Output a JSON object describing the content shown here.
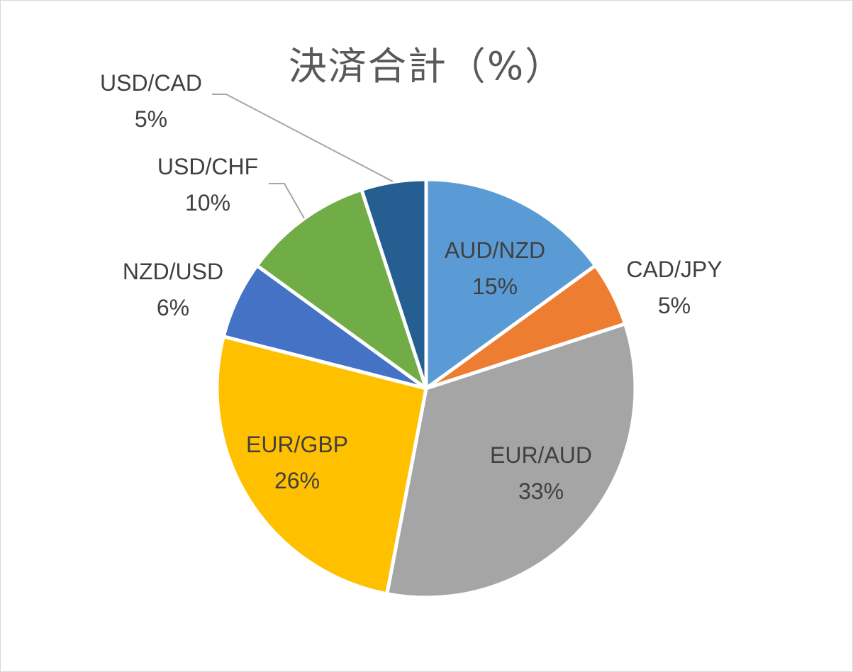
{
  "chart_data": {
    "type": "pie",
    "title": "決済合計（%）",
    "start_angle_deg": 0,
    "direction": "clockwise",
    "slices": [
      {
        "label": "AUD/NZD",
        "value": 15,
        "display": "15%",
        "color": "#5b9bd5",
        "label_position": "inside"
      },
      {
        "label": "CAD/JPY",
        "value": 5,
        "display": "5%",
        "color": "#ed7d31",
        "label_position": "outside"
      },
      {
        "label": "EUR/AUD",
        "value": 33,
        "display": "33%",
        "color": "#a5a5a5",
        "label_position": "inside"
      },
      {
        "label": "EUR/GBP",
        "value": 26,
        "display": "26%",
        "color": "#ffc000",
        "label_position": "inside"
      },
      {
        "label": "NZD/USD",
        "value": 6,
        "display": "6%",
        "color": "#4472c4",
        "label_position": "outside"
      },
      {
        "label": "USD/CHF",
        "value": 10,
        "display": "10%",
        "color": "#70ad47",
        "label_position": "outside"
      },
      {
        "label": "USD/CAD",
        "value": 5,
        "display": "5%",
        "color": "#255e91",
        "label_position": "outside"
      }
    ]
  }
}
